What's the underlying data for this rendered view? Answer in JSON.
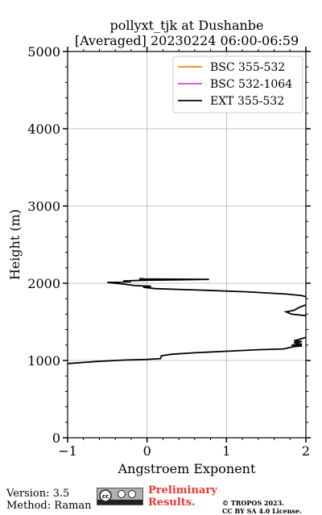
{
  "chart_data": {
    "type": "line",
    "title_line1": "pollyxt_tjk at Dushanbe",
    "title_line2": "[Averaged] 20230224 06:00-06:59",
    "xlabel": "Angstroem Exponent",
    "ylabel": "Height (m)",
    "xlim": [
      -1,
      2
    ],
    "ylim": [
      0,
      5000
    ],
    "xticks": [
      -1,
      0,
      1,
      2
    ],
    "yticks": [
      0,
      1000,
      2000,
      3000,
      4000,
      5000
    ],
    "grid": true,
    "legend_position": "top-right",
    "series": [
      {
        "name": "BSC 355-532",
        "color": "#ff7f0e",
        "points": []
      },
      {
        "name": "BSC 532-1064",
        "color": "#e040e0",
        "points": []
      },
      {
        "name": "EXT 355-532",
        "color": "#000000",
        "points": [
          [
            -1.0,
            960
          ],
          [
            -0.6,
            990
          ],
          [
            -0.3,
            1005
          ],
          [
            0.0,
            1015
          ],
          [
            0.17,
            1025
          ],
          [
            0.18,
            1060
          ],
          [
            0.3,
            1080
          ],
          [
            0.6,
            1100
          ],
          [
            1.0,
            1120
          ],
          [
            1.4,
            1140
          ],
          [
            1.72,
            1150
          ],
          [
            1.85,
            1180
          ],
          [
            1.95,
            1190
          ],
          [
            1.82,
            1200
          ],
          [
            1.95,
            1210
          ],
          [
            1.85,
            1230
          ],
          [
            1.95,
            1245
          ],
          [
            1.85,
            1255
          ],
          [
            1.92,
            1275
          ],
          [
            2.0,
            1300
          ],
          [
            2.1,
            1350
          ],
          [
            2.1,
            1550
          ],
          [
            2.0,
            1580
          ],
          [
            1.82,
            1600
          ],
          [
            1.75,
            1630
          ],
          [
            1.85,
            1650
          ],
          [
            1.92,
            1690
          ],
          [
            2.0,
            1720
          ],
          [
            2.1,
            1750
          ],
          [
            2.1,
            1800
          ],
          [
            1.95,
            1840
          ],
          [
            1.75,
            1860
          ],
          [
            1.25,
            1890
          ],
          [
            0.7,
            1910
          ],
          [
            0.1,
            1930
          ],
          [
            -0.05,
            1950
          ],
          [
            0.05,
            1960
          ],
          [
            -0.15,
            1970
          ],
          [
            -0.3,
            1990
          ],
          [
            -0.5,
            2010
          ],
          [
            -0.2,
            2020
          ],
          [
            -0.3,
            2030
          ],
          [
            0.0,
            2040
          ],
          [
            0.4,
            2045
          ],
          [
            0.78,
            2050
          ],
          [
            -0.1,
            2055
          ],
          [
            -0.05,
            2060
          ]
        ]
      }
    ]
  },
  "footer": {
    "version": "Version: 3.5",
    "method": "Method: Raman",
    "prelim_line1": "Preliminary",
    "prelim_line2": "Results.",
    "copyright_line1": "© TROPOS 2023.",
    "copyright_line2": "CC BY SA 4.0 License."
  }
}
